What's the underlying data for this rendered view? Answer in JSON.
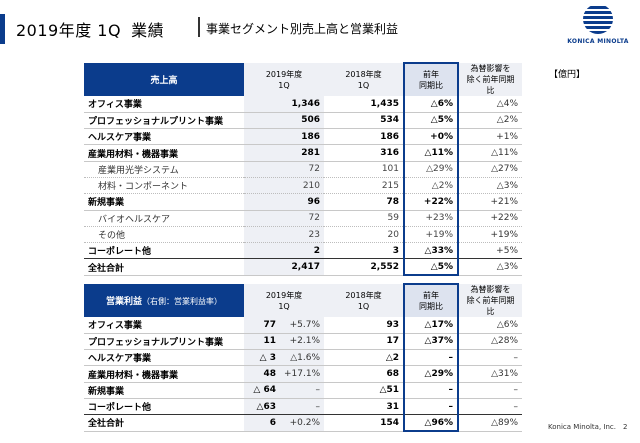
{
  "header": {
    "title_left": "2019年度 1Q",
    "title_mid": "業績",
    "subtitle": "事業セグメント別売上高と営業利益"
  },
  "logo": {
    "text": "KONICA MINOLTA",
    "icon": "konica-minolta-globe-icon"
  },
  "unit": "【億円】",
  "sales": {
    "header_label": "売上高",
    "col_cur": "2019年度\n1Q",
    "col_prev": "2018年度\n1Q",
    "col_yoy": "前年\n同期比",
    "col_fx": "為替影響を\n除く前年同期比",
    "rows": [
      {
        "label": "オフィス事業",
        "cur": "1,346",
        "prev": "1,435",
        "yoy": "△6%",
        "fx": "△4%",
        "sub": false
      },
      {
        "label": "プロフェッショナルプリント事業",
        "cur": "506",
        "prev": "534",
        "yoy": "△5%",
        "fx": "△2%",
        "sub": false
      },
      {
        "label": "ヘルスケア事業",
        "cur": "186",
        "prev": "186",
        "yoy": "+0%",
        "fx": "+1%",
        "sub": false
      },
      {
        "label": "産業用材料・機器事業",
        "cur": "281",
        "prev": "316",
        "yoy": "△11%",
        "fx": "△11%",
        "sub": false
      },
      {
        "label": "産業用光学システム",
        "cur": "72",
        "prev": "101",
        "yoy": "△29%",
        "fx": "△27%",
        "sub": true
      },
      {
        "label": "材料・コンポーネント",
        "cur": "210",
        "prev": "215",
        "yoy": "△2%",
        "fx": "△3%",
        "sub": true
      },
      {
        "label": "新規事業",
        "cur": "96",
        "prev": "78",
        "yoy": "+22%",
        "fx": "+21%",
        "sub": false
      },
      {
        "label": "バイオヘルスケア",
        "cur": "72",
        "prev": "59",
        "yoy": "+23%",
        "fx": "+22%",
        "sub": true
      },
      {
        "label": "その他",
        "cur": "23",
        "prev": "20",
        "yoy": "+19%",
        "fx": "+19%",
        "sub": true
      },
      {
        "label": "コーポレート他",
        "cur": "2",
        "prev": "3",
        "yoy": "△33%",
        "fx": "+5%",
        "sub": false
      },
      {
        "label": "全社合計",
        "cur": "2,417",
        "prev": "2,552",
        "yoy": "△5%",
        "fx": "△3%",
        "sub": false
      }
    ]
  },
  "op": {
    "header_label": "営業利益",
    "header_note": "（右側：営業利益率）",
    "col_cur": "2019年度\n1Q",
    "col_prev": "2018年度\n1Q",
    "col_yoy": "前年\n同期比",
    "col_fx": "為替影響を\n除く前年同期比",
    "rows": [
      {
        "label": "オフィス事業",
        "cur": "77",
        "rate": "+5.7%",
        "prev": "93",
        "yoy": "△17%",
        "fx": "△6%"
      },
      {
        "label": "プロフェッショナルプリント事業",
        "cur": "11",
        "rate": "+2.1%",
        "prev": "17",
        "yoy": "△37%",
        "fx": "△28%"
      },
      {
        "label": "ヘルスケア事業",
        "cur": "△ 3",
        "rate": "△1.6%",
        "prev": "△2",
        "yoy": "–",
        "fx": "–"
      },
      {
        "label": "産業用材料・機器事業",
        "cur": "48",
        "rate": "+17.1%",
        "prev": "68",
        "yoy": "△29%",
        "fx": "△31%"
      },
      {
        "label": "新規事業",
        "cur": "△ 64",
        "rate": "–",
        "prev": "△51",
        "yoy": "–",
        "fx": "–"
      },
      {
        "label": "コーポレート他",
        "cur": "△63",
        "rate": "–",
        "prev": "31",
        "yoy": "–",
        "fx": "–"
      },
      {
        "label": "全社合計",
        "cur": "6",
        "rate": "+0.2%",
        "prev": "154",
        "yoy": "△96%",
        "fx": "△89%"
      }
    ]
  },
  "footer": {
    "company": "Konica Minolta, Inc.",
    "page": "2"
  }
}
